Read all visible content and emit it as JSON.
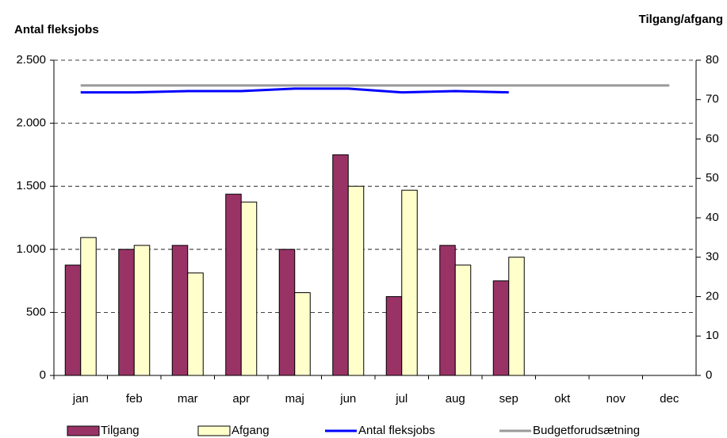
{
  "chart_data": {
    "type": "bar",
    "ylabel": "Antal fleksjobs",
    "y2label": "Tilgang/afgang",
    "categories": [
      "jan",
      "feb",
      "mar",
      "apr",
      "maj",
      "jun",
      "jul",
      "aug",
      "sep",
      "okt",
      "nov",
      "dec"
    ],
    "series": [
      {
        "name": "Tilgang",
        "type": "bar",
        "axis": "y2",
        "color": "#993366",
        "values": [
          28,
          32,
          33,
          46,
          32,
          56,
          20,
          33,
          24,
          null,
          null,
          null
        ]
      },
      {
        "name": "Afgang",
        "type": "bar",
        "axis": "y2",
        "color": "#ffffcc",
        "values": [
          35,
          33,
          26,
          44,
          21,
          48,
          47,
          28,
          30,
          null,
          null,
          null
        ]
      },
      {
        "name": "Antal fleksjobs",
        "type": "line",
        "color": "#0000ff",
        "values": [
          2245,
          2245,
          2255,
          2255,
          2275,
          2275,
          2245,
          2255,
          2245,
          null,
          null,
          null
        ]
      },
      {
        "name": "Budgetforudsætning",
        "type": "line",
        "color": "#999999",
        "values": [
          2300,
          2300,
          2300,
          2300,
          2300,
          2300,
          2300,
          2300,
          2300,
          2300,
          2300,
          2300
        ]
      }
    ],
    "ylim": [
      0,
      2500
    ],
    "yticks": [
      0,
      500,
      {
        "value": 1000,
        "label": "1.000"
      },
      {
        "value": 1500,
        "label": "1.500"
      },
      {
        "value": 2000,
        "label": "2.000"
      },
      {
        "value": 2500,
        "label": "2.500"
      }
    ],
    "y2lim": [
      0,
      80
    ],
    "y2ticks": [
      0,
      10,
      20,
      30,
      40,
      50,
      60,
      70,
      80
    ],
    "grid": true,
    "legend": "bottom"
  }
}
